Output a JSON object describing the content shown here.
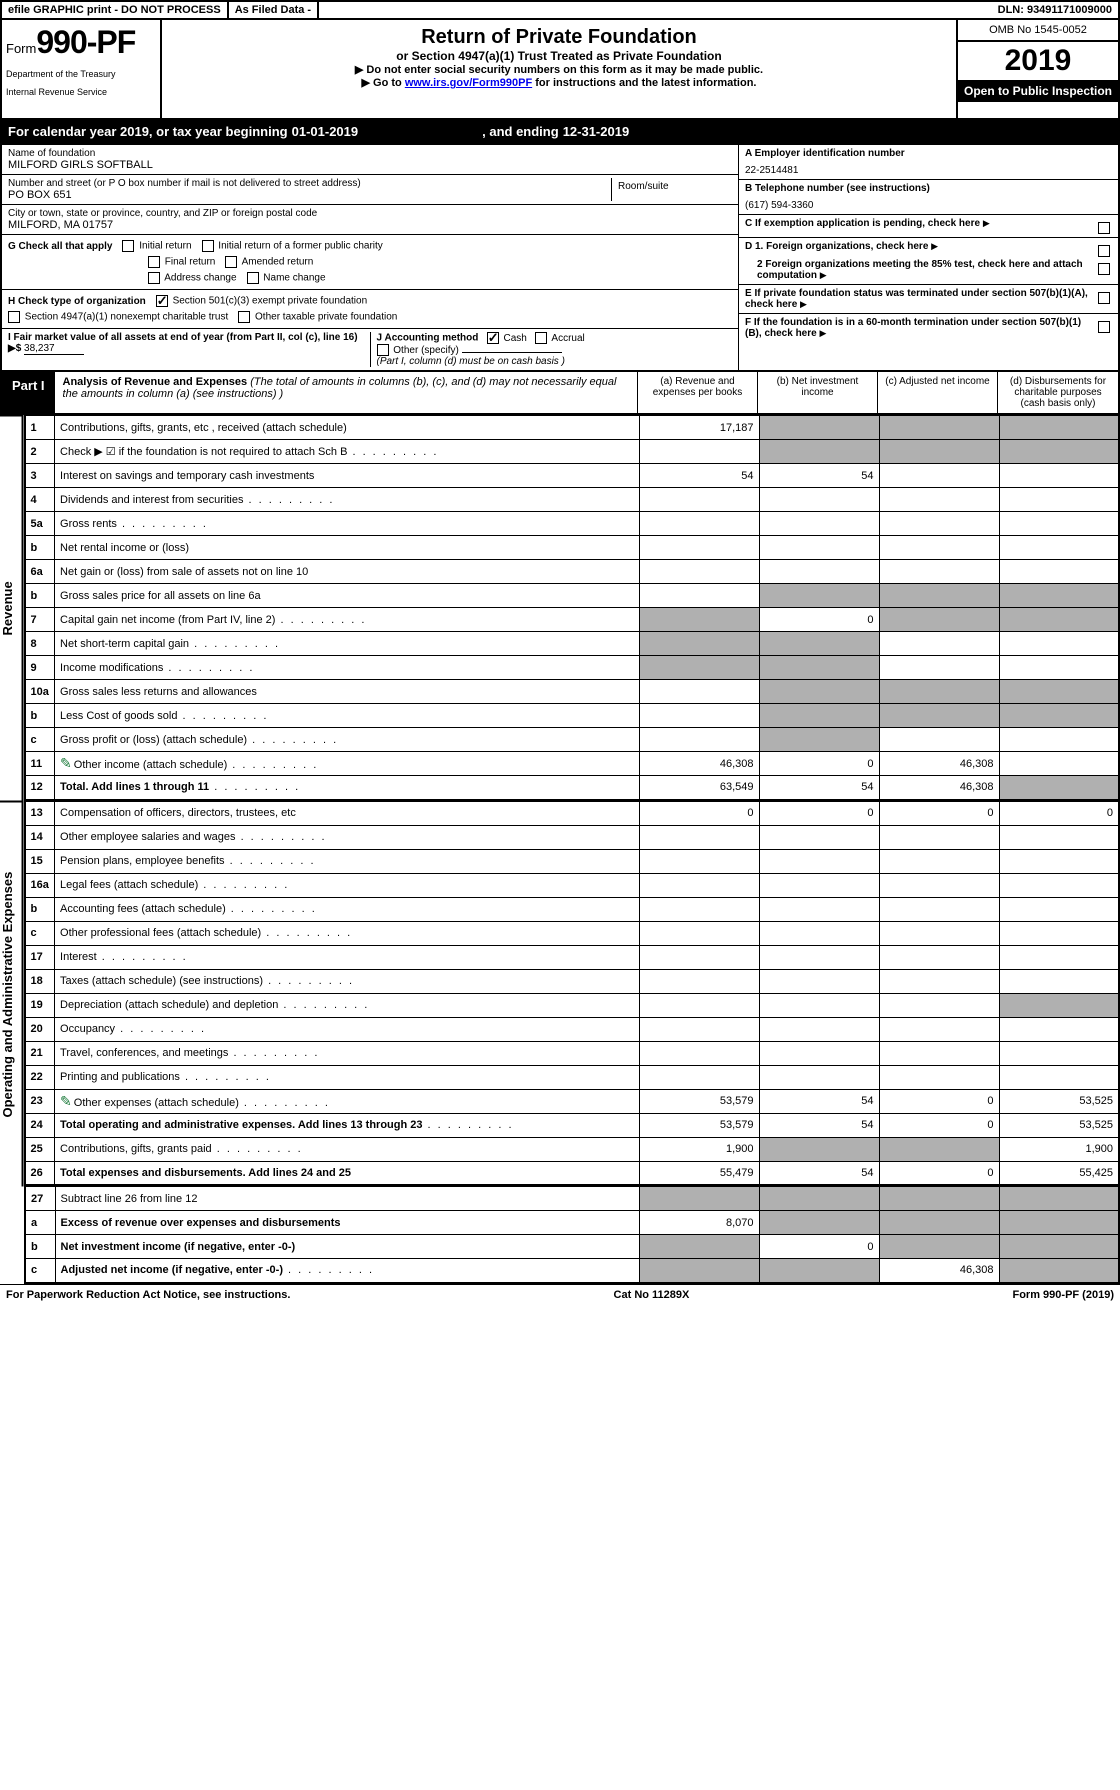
{
  "topbar": {
    "efile": "efile GRAPHIC print - DO NOT PROCESS",
    "asfiled": "As Filed Data -",
    "dln": "DLN: 93491171009000"
  },
  "header": {
    "form_prefix": "Form",
    "form_number": "990-PF",
    "dept1": "Department of the Treasury",
    "dept2": "Internal Revenue Service",
    "title": "Return of Private Foundation",
    "subtitle": "or Section 4947(a)(1) Trust Treated as Private Foundation",
    "inst1": "▶ Do not enter social security numbers on this form as it may be made public.",
    "inst2_pre": "▶ Go to ",
    "inst2_link": "www.irs.gov/Form990PF",
    "inst2_post": " for instructions and the latest information.",
    "omb": "OMB No 1545-0052",
    "year": "2019",
    "open": "Open to Public Inspection"
  },
  "cal": {
    "pre": "For calendar year 2019, or tax year beginning ",
    "begin": "01-01-2019",
    "mid": ", and ending ",
    "end": "12-31-2019"
  },
  "id": {
    "name_lbl": "Name of foundation",
    "name": "MILFORD GIRLS SOFTBALL",
    "addr_lbl": "Number and street (or P O  box number if mail is not delivered to street address)",
    "addr": "PO BOX 651",
    "room_lbl": "Room/suite",
    "city_lbl": "City or town, state or province, country, and ZIP or foreign postal code",
    "city": "MILFORD, MA  01757",
    "a_lbl": "A Employer identification number",
    "a_val": "22-2514481",
    "b_lbl": "B Telephone number (see instructions)",
    "b_val": "(617) 594-3360",
    "c_lbl": "C If exemption application is pending, check here",
    "d1": "D 1. Foreign organizations, check here",
    "d2": "2 Foreign organizations meeting the 85% test, check here and attach computation",
    "e": "E  If private foundation status was terminated under section 507(b)(1)(A), check here",
    "f": "F  If the foundation is in a 60-month termination under section 507(b)(1)(B), check here"
  },
  "g": {
    "lbl": "G Check all that apply",
    "opts": [
      "Initial return",
      "Initial return of a former public charity",
      "Final return",
      "Amended return",
      "Address change",
      "Name change"
    ]
  },
  "h": {
    "lbl": "H Check type of organization",
    "opt1": "Section 501(c)(3) exempt private foundation",
    "opt2": "Section 4947(a)(1) nonexempt charitable trust",
    "opt3": "Other taxable private foundation"
  },
  "i": {
    "lbl": "I Fair market value of all assets at end of year (from Part II, col  (c), line 16) ▶$ ",
    "val": "38,237"
  },
  "j": {
    "lbl": "J Accounting method",
    "cash": "Cash",
    "accrual": "Accrual",
    "other": "Other (specify)",
    "note": "(Part I, column (d) must be on cash basis )"
  },
  "part1": {
    "tab": "Part I",
    "desc_bold": "Analysis of Revenue and Expenses",
    "desc_rest": " (The total of amounts in columns (b), (c), and (d) may not necessarily equal the amounts in column (a) (see instructions) )",
    "col_a": "(a)   Revenue and expenses per books",
    "col_b": "(b)  Net investment income",
    "col_c": "(c)  Adjusted net income",
    "col_d": "(d)  Disbursements for charitable purposes (cash basis only)"
  },
  "sections": {
    "revenue": "Revenue",
    "opex": "Operating and Administrative Expenses"
  },
  "rows": [
    {
      "n": "1",
      "d": "Contributions, gifts, grants, etc , received (attach schedule)",
      "a": "17,187",
      "shade_bcd": true
    },
    {
      "n": "2",
      "d": "Check ▶ ☑ if the foundation is not required to attach Sch B",
      "dots": true,
      "noval": true,
      "shade_bcd": true
    },
    {
      "n": "3",
      "d": "Interest on savings and temporary cash investments",
      "a": "54",
      "b": "54"
    },
    {
      "n": "4",
      "d": "Dividends and interest from securities",
      "dots": true
    },
    {
      "n": "5a",
      "d": "Gross rents",
      "dots": true
    },
    {
      "n": "b",
      "d": "Net rental income or (loss)",
      "shade_abcd": "a_only_open"
    },
    {
      "n": "6a",
      "d": "Net gain or (loss) from sale of assets not on line 10",
      "shade_bc": false
    },
    {
      "n": "b",
      "d": "Gross sales price for all assets on line 6a",
      "noval": true,
      "shade_bcd": true
    },
    {
      "n": "7",
      "d": "Capital gain net income (from Part IV, line 2)",
      "dots": true,
      "b": "0",
      "shade_a": true,
      "shade_cd": true
    },
    {
      "n": "8",
      "d": "Net short-term capital gain",
      "dots": true,
      "shade_ab": true
    },
    {
      "n": "9",
      "d": "Income modifications",
      "dots": true,
      "shade_ab": true
    },
    {
      "n": "10a",
      "d": "Gross sales less returns and allowances",
      "shade_bcd": true
    },
    {
      "n": "b",
      "d": "Less  Cost of goods sold",
      "dots": true,
      "shade_bcd": true
    },
    {
      "n": "c",
      "d": "Gross profit or (loss) (attach schedule)",
      "dots": true,
      "shade_b": true
    },
    {
      "n": "11",
      "d": "Other income (attach schedule)",
      "dots": true,
      "attach": true,
      "a": "46,308",
      "b": "0",
      "c": "46,308"
    },
    {
      "n": "12",
      "d": "Total. Add lines 1 through 11",
      "dots": true,
      "bold": true,
      "a": "63,549",
      "b": "54",
      "c": "46,308",
      "shade_d": true
    }
  ],
  "exrows": [
    {
      "n": "13",
      "d": "Compensation of officers, directors, trustees, etc",
      "a": "0",
      "b": "0",
      "c": "0",
      "dcol": "0"
    },
    {
      "n": "14",
      "d": "Other employee salaries and wages",
      "dots": true
    },
    {
      "n": "15",
      "d": "Pension plans, employee benefits",
      "dots": true
    },
    {
      "n": "16a",
      "d": "Legal fees (attach schedule)",
      "dots": true
    },
    {
      "n": "b",
      "d": "Accounting fees (attach schedule)",
      "dots": true
    },
    {
      "n": "c",
      "d": "Other professional fees (attach schedule)",
      "dots": true
    },
    {
      "n": "17",
      "d": "Interest",
      "dots": true
    },
    {
      "n": "18",
      "d": "Taxes (attach schedule) (see instructions)",
      "dots": true
    },
    {
      "n": "19",
      "d": "Depreciation (attach schedule) and depletion",
      "dots": true,
      "shade_d": true
    },
    {
      "n": "20",
      "d": "Occupancy",
      "dots": true
    },
    {
      "n": "21",
      "d": "Travel, conferences, and meetings",
      "dots": true
    },
    {
      "n": "22",
      "d": "Printing and publications",
      "dots": true
    },
    {
      "n": "23",
      "d": "Other expenses (attach schedule)",
      "dots": true,
      "attach": true,
      "a": "53,579",
      "b": "54",
      "c": "0",
      "dcol": "53,525"
    },
    {
      "n": "24",
      "d": "Total operating and administrative expenses. Add lines 13 through 23",
      "dots": true,
      "bold": true,
      "a": "53,579",
      "b": "54",
      "c": "0",
      "dcol": "53,525"
    },
    {
      "n": "25",
      "d": "Contributions, gifts, grants paid",
      "dots": true,
      "a": "1,900",
      "shade_bc": true,
      "dcol": "1,900"
    },
    {
      "n": "26",
      "d": "Total expenses and disbursements. Add lines 24 and 25",
      "bold": true,
      "a": "55,479",
      "b": "54",
      "c": "0",
      "dcol": "55,425"
    }
  ],
  "botrows": [
    {
      "n": "27",
      "d": "Subtract line 26 from line 12",
      "shade_all": true
    },
    {
      "n": "a",
      "d": "Excess of revenue over expenses and disbursements",
      "bold": true,
      "a": "8,070",
      "shade_bcd": true
    },
    {
      "n": "b",
      "d": "Net investment income (if negative, enter -0-)",
      "bold": true,
      "b": "0",
      "shade_a": true,
      "shade_cd": true
    },
    {
      "n": "c",
      "d": "Adjusted net income (if negative, enter -0-)",
      "bold": true,
      "dots": true,
      "c": "46,308",
      "shade_ab": true,
      "shade_d": true
    }
  ],
  "footer": {
    "left": "For Paperwork Reduction Act Notice, see instructions.",
    "mid": "Cat  No  11289X",
    "right": "Form 990-PF (2019)"
  }
}
